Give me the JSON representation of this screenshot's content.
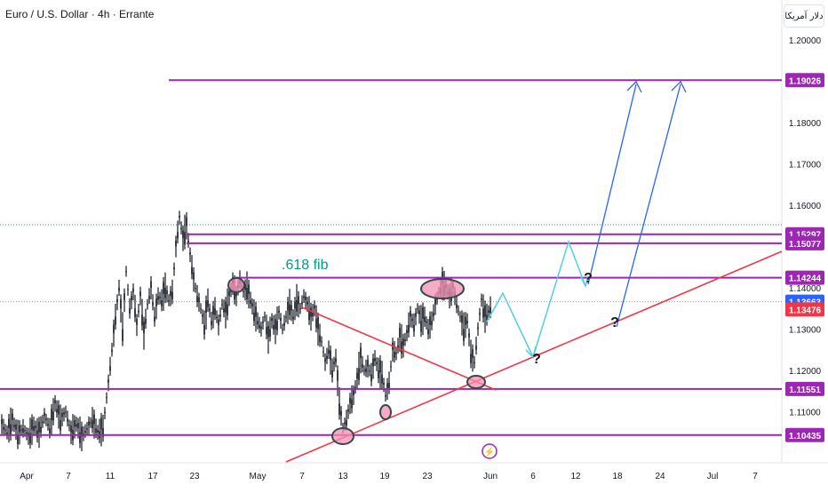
{
  "header": {
    "title": "Euro / U.S. Dollar · 4h · Errante",
    "currency_badge": "دلار آمریکا"
  },
  "colors": {
    "purple": "#9c27b0",
    "red_trend": "#f23645",
    "cyan_path": "#4dd0e1",
    "blue_arrow": "#2962ff",
    "fib_text": "#089981",
    "current_badge": "#2962ff",
    "red_badge": "#f23645",
    "candle": "#131722"
  },
  "chart_data": {
    "type": "candlestick",
    "title": "",
    "ylim": [
      1.1025,
      1.2035
    ],
    "y_ticks": [
      "1.20000",
      "1.18000",
      "1.17000",
      "1.16000",
      "1.14000",
      "1.13000",
      "1.12000",
      "1.11000"
    ],
    "x_ticks": [
      "Apr",
      "7",
      "11",
      "17",
      "23",
      "May",
      "7",
      "13",
      "19",
      "23",
      "Jun",
      "6",
      "12",
      "18",
      "24",
      "Jul",
      "7"
    ],
    "levels": [
      {
        "label": "1.19026",
        "value": 1.19026
      },
      {
        "label": "1.15297",
        "value": 1.15297
      },
      {
        "label": "1.15077",
        "value": 1.15077
      },
      {
        "label": "1.14244",
        "value": 1.14244
      },
      {
        "label": "1.11551",
        "value": 1.11551
      },
      {
        "label": "1.10435",
        "value": 1.10435
      }
    ],
    "current_price": {
      "label": "1.13663",
      "value": 1.13663
    },
    "red_price": {
      "label": "1.13476",
      "value": 1.13476
    },
    "annotation": ".618 fib",
    "question_marks": [
      "?",
      "?",
      "?"
    ],
    "lightning": "⚡",
    "price_path": [
      [
        0,
        1.107
      ],
      [
        6,
        1.105
      ],
      [
        12,
        1.108
      ],
      [
        18,
        1.1045
      ],
      [
        24,
        1.106
      ],
      [
        30,
        1.104
      ],
      [
        36,
        1.1065
      ],
      [
        42,
        1.105
      ],
      [
        48,
        1.109
      ],
      [
        54,
        1.106
      ],
      [
        60,
        1.112
      ],
      [
        66,
        1.108
      ],
      [
        72,
        1.11
      ],
      [
        78,
        1.105
      ],
      [
        84,
        1.107
      ],
      [
        90,
        1.104
      ],
      [
        96,
        1.106
      ],
      [
        102,
        1.108
      ],
      [
        108,
        1.105
      ],
      [
        114,
        1.106
      ],
      [
        120,
        1.117
      ],
      [
        124,
        1.125
      ],
      [
        128,
        1.133
      ],
      [
        132,
        1.14
      ],
      [
        136,
        1.13
      ],
      [
        140,
        1.144
      ],
      [
        144,
        1.135
      ],
      [
        148,
        1.139
      ],
      [
        152,
        1.131
      ],
      [
        156,
        1.138
      ],
      [
        160,
        1.129
      ],
      [
        164,
        1.136
      ],
      [
        168,
        1.14
      ],
      [
        172,
        1.133
      ],
      [
        176,
        1.138
      ],
      [
        180,
        1.137
      ],
      [
        184,
        1.14
      ],
      [
        188,
        1.137
      ],
      [
        192,
        1.139
      ],
      [
        196,
        1.15
      ],
      [
        200,
        1.157
      ],
      [
        204,
        1.152
      ],
      [
        208,
        1.155
      ],
      [
        212,
        1.148
      ],
      [
        216,
        1.142
      ],
      [
        220,
        1.138
      ],
      [
        224,
        1.135
      ],
      [
        228,
        1.131
      ],
      [
        232,
        1.137
      ],
      [
        236,
        1.132
      ],
      [
        240,
        1.135
      ],
      [
        244,
        1.131
      ],
      [
        248,
        1.136
      ],
      [
        252,
        1.134
      ],
      [
        256,
        1.138
      ],
      [
        260,
        1.141
      ],
      [
        264,
        1.138
      ],
      [
        268,
        1.142
      ],
      [
        272,
        1.139
      ],
      [
        276,
        1.14
      ],
      [
        280,
        1.137
      ],
      [
        284,
        1.134
      ],
      [
        288,
        1.132
      ],
      [
        292,
        1.13
      ],
      [
        296,
        1.133
      ],
      [
        300,
        1.128
      ],
      [
        304,
        1.132
      ],
      [
        308,
        1.13
      ],
      [
        312,
        1.134
      ],
      [
        316,
        1.13
      ],
      [
        320,
        1.133
      ],
      [
        324,
        1.136
      ],
      [
        328,
        1.133
      ],
      [
        332,
        1.137
      ],
      [
        336,
        1.135
      ],
      [
        340,
        1.138
      ],
      [
        344,
        1.136
      ],
      [
        348,
        1.133
      ],
      [
        352,
        1.135
      ],
      [
        356,
        1.13
      ],
      [
        360,
        1.127
      ],
      [
        364,
        1.122
      ],
      [
        368,
        1.125
      ],
      [
        372,
        1.12
      ],
      [
        376,
        1.123
      ],
      [
        380,
        1.112
      ],
      [
        384,
        1.106
      ],
      [
        388,
        1.108
      ],
      [
        392,
        1.112
      ],
      [
        396,
        1.114
      ],
      [
        400,
        1.118
      ],
      [
        404,
        1.123
      ],
      [
        408,
        1.12
      ],
      [
        412,
        1.121
      ],
      [
        416,
        1.119
      ],
      [
        420,
        1.123
      ],
      [
        424,
        1.12
      ],
      [
        428,
        1.119
      ],
      [
        432,
        1.114
      ],
      [
        436,
        1.117
      ],
      [
        440,
        1.125
      ],
      [
        444,
        1.124
      ],
      [
        448,
        1.128
      ],
      [
        452,
        1.126
      ],
      [
        456,
        1.129
      ],
      [
        460,
        1.133
      ],
      [
        464,
        1.131
      ],
      [
        468,
        1.135
      ],
      [
        472,
        1.132
      ],
      [
        476,
        1.133
      ],
      [
        480,
        1.13
      ],
      [
        484,
        1.132
      ],
      [
        488,
        1.136
      ],
      [
        492,
        1.139
      ],
      [
        496,
        1.141
      ],
      [
        500,
        1.14
      ],
      [
        504,
        1.138
      ],
      [
        508,
        1.14
      ],
      [
        512,
        1.136
      ],
      [
        516,
        1.133
      ],
      [
        520,
        1.13
      ],
      [
        524,
        1.132
      ],
      [
        528,
        1.124
      ],
      [
        532,
        1.122
      ],
      [
        536,
        1.13
      ],
      [
        540,
        1.137
      ],
      [
        544,
        1.133
      ],
      [
        548,
        1.134
      ],
      [
        552,
        1.1366
      ]
    ]
  }
}
